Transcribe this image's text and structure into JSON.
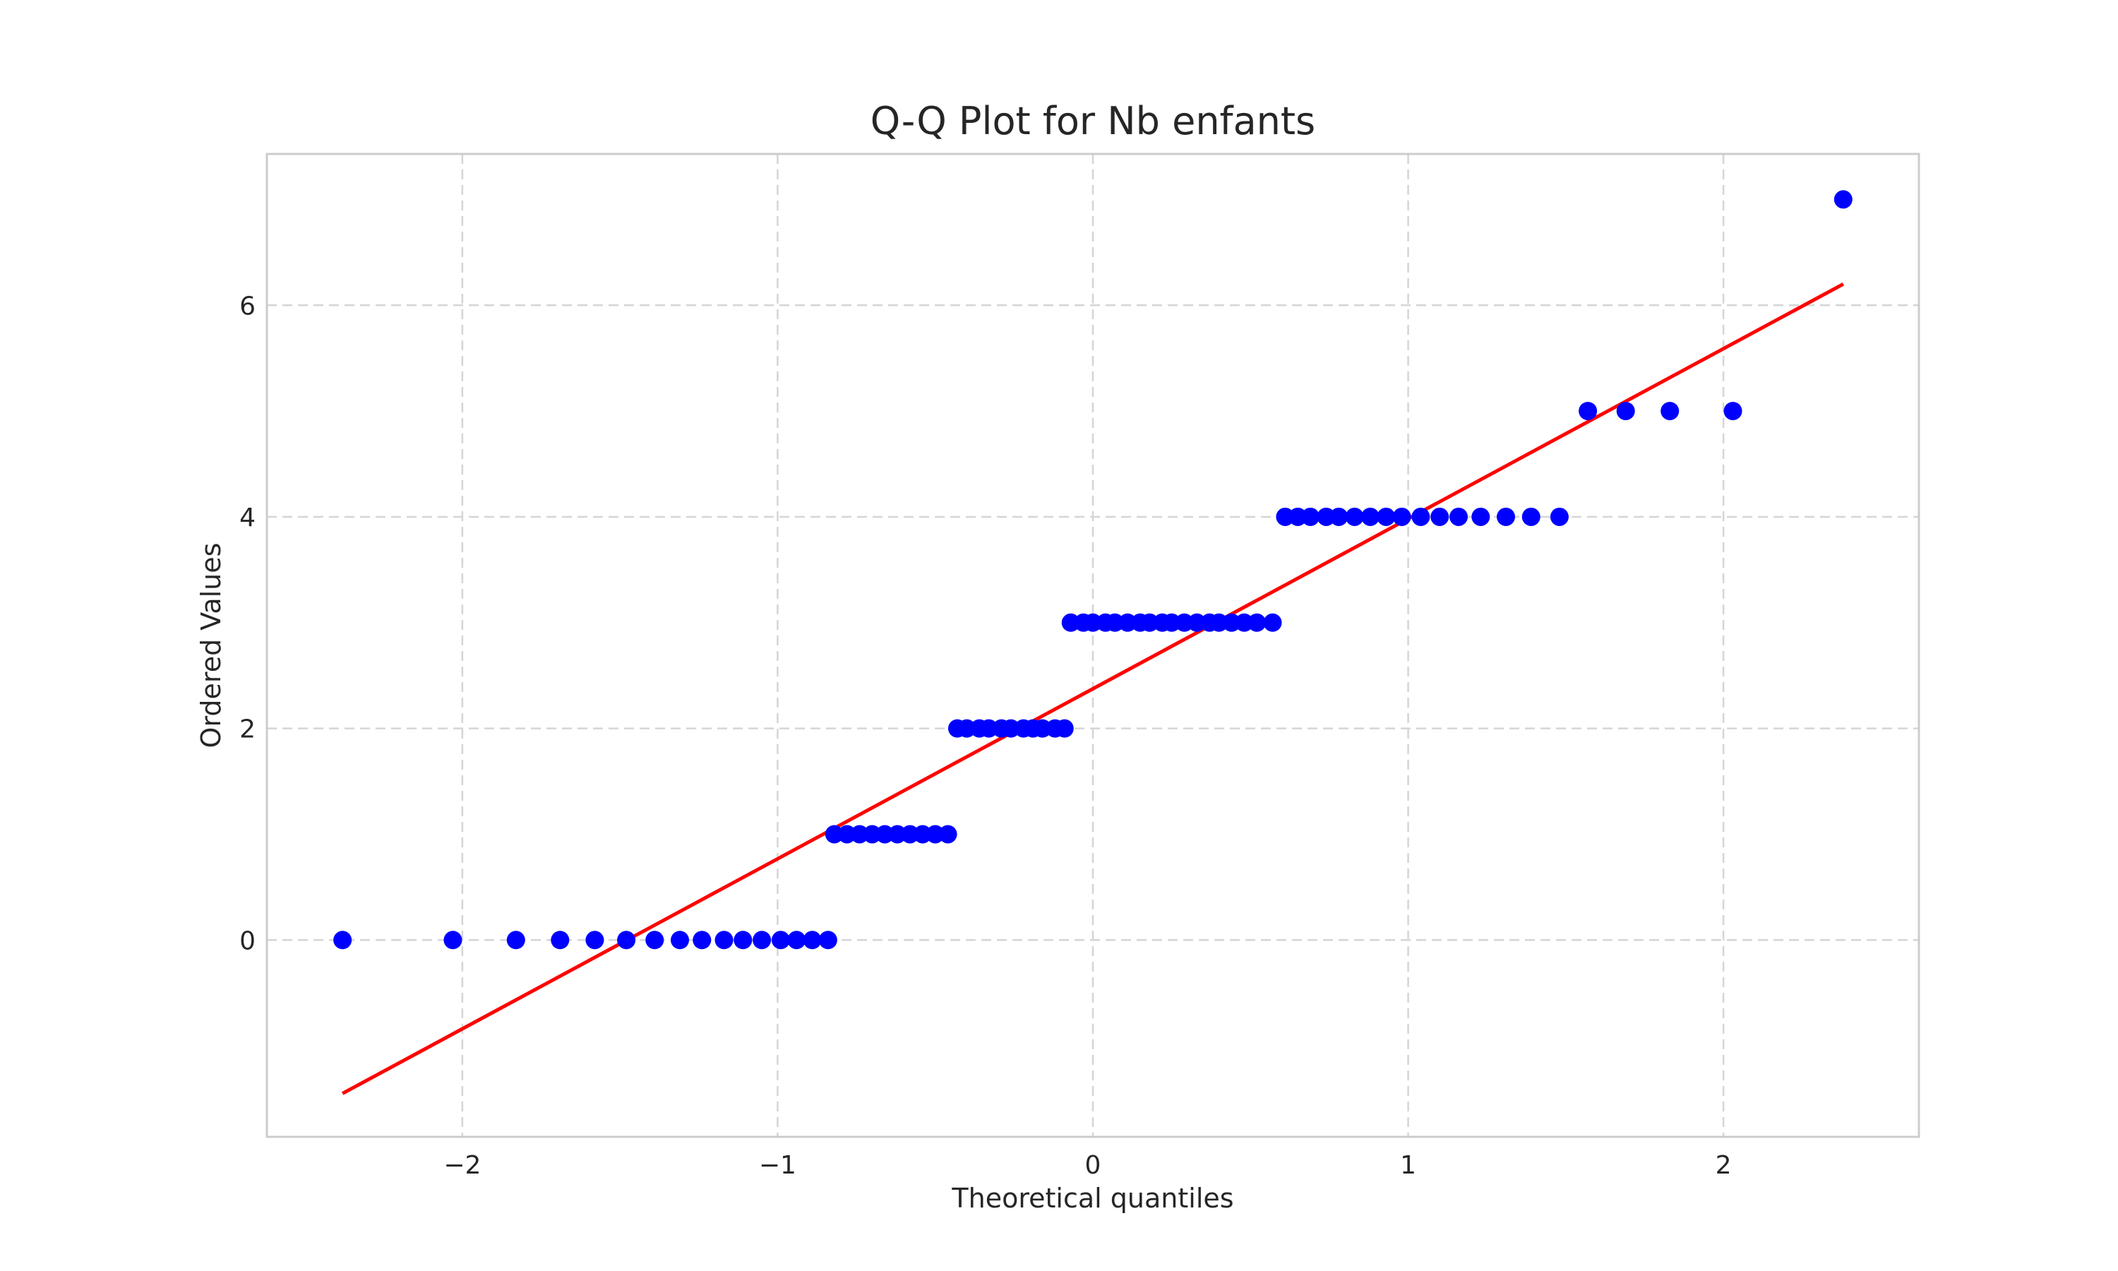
{
  "chart_data": {
    "type": "scatter",
    "title": "Q-Q Plot for Nb enfants",
    "xlabel": "Theoretical quantiles",
    "ylabel": "Ordered Values",
    "xlim": [
      -2.62,
      2.62
    ],
    "ylim": [
      -1.86,
      7.43
    ],
    "xticks": [
      -2,
      -1,
      0,
      1,
      2
    ],
    "xtick_labels": [
      "−2",
      "−1",
      "0",
      "1",
      "2"
    ],
    "yticks": [
      0,
      2,
      4,
      6
    ],
    "ytick_labels": [
      "0",
      "2",
      "4",
      "6"
    ],
    "grid": true,
    "colors": {
      "points": "#0000ff",
      "fit_line": "#ff0000"
    },
    "series": [
      {
        "kind": "points",
        "x": [
          -2.38,
          -2.03,
          -1.83,
          -1.69,
          -1.58,
          -1.48,
          -1.39,
          -1.31,
          -1.24,
          -1.17,
          -1.11,
          -1.05,
          -0.99,
          -0.94,
          -0.89,
          -0.84,
          -0.82,
          -0.78,
          -0.74,
          -0.7,
          -0.66,
          -0.62,
          -0.58,
          -0.54,
          -0.5,
          -0.46,
          -0.43,
          -0.4,
          -0.36,
          -0.33,
          -0.29,
          -0.26,
          -0.22,
          -0.19,
          -0.16,
          -0.12,
          -0.09,
          -0.07,
          -0.03,
          0.0,
          0.04,
          0.07,
          0.11,
          0.15,
          0.18,
          0.22,
          0.25,
          0.29,
          0.33,
          0.37,
          0.4,
          0.44,
          0.48,
          0.52,
          0.57,
          0.61,
          0.65,
          0.69,
          0.74,
          0.78,
          0.83,
          0.88,
          0.93,
          0.98,
          1.04,
          1.1,
          1.16,
          1.23,
          1.31,
          1.39,
          1.48,
          1.57,
          1.69,
          1.83,
          2.03,
          2.38
        ],
        "y": [
          0,
          0,
          0,
          0,
          0,
          0,
          0,
          0,
          0,
          0,
          0,
          0,
          0,
          0,
          0,
          0,
          1,
          1,
          1,
          1,
          1,
          1,
          1,
          1,
          1,
          1,
          2,
          2,
          2,
          2,
          2,
          2,
          2,
          2,
          2,
          2,
          2,
          3,
          3,
          3,
          3,
          3,
          3,
          3,
          3,
          3,
          3,
          3,
          3,
          3,
          3,
          3,
          3,
          3,
          3,
          4,
          4,
          4,
          4,
          4,
          4,
          4,
          4,
          4,
          4,
          4,
          4,
          4,
          4,
          4,
          4,
          5,
          5,
          5,
          5,
          7
        ]
      },
      {
        "kind": "line",
        "x": [
          -2.38,
          2.38
        ],
        "y": [
          -1.45,
          6.2
        ]
      }
    ]
  }
}
